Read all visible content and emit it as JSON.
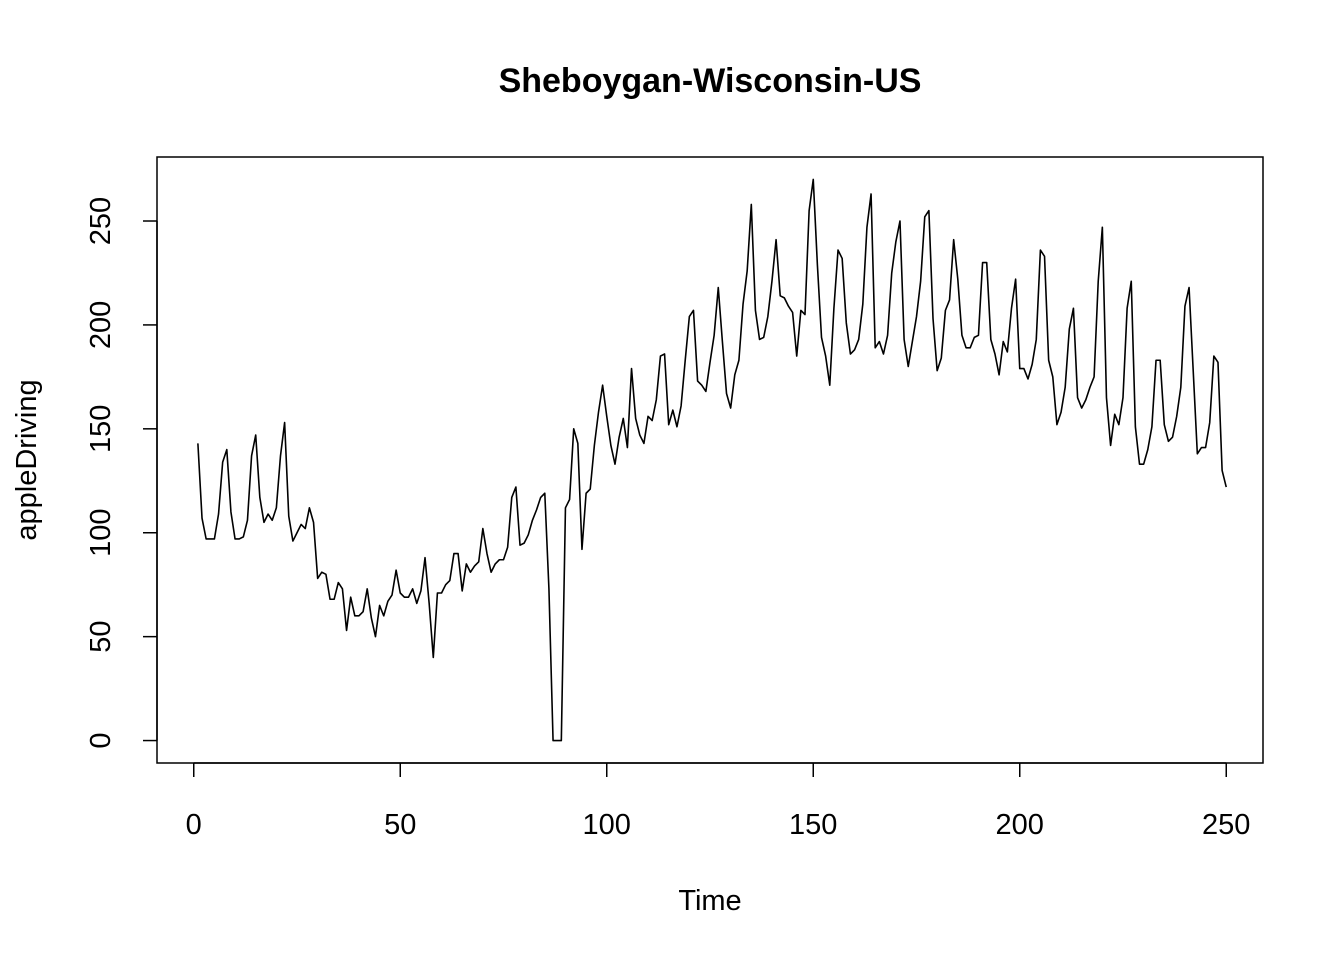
{
  "chart_data": {
    "type": "line",
    "title": "Sheboygan-Wisconsin-US",
    "xlabel": "Time",
    "ylabel": "appleDriving",
    "xlim": [
      -8.9,
      258.9
    ],
    "ylim": [
      -10.8,
      280.8
    ],
    "x_ticks": [
      0,
      50,
      100,
      150,
      200,
      250
    ],
    "y_ticks": [
      0,
      50,
      100,
      150,
      200,
      250
    ],
    "x_tick_labels": [
      "0",
      "50",
      "100",
      "150",
      "200",
      "250"
    ],
    "y_tick_labels": [
      "0",
      "50",
      "100",
      "150",
      "200",
      "250"
    ],
    "grid": false,
    "line_color": "#000000",
    "series": [
      {
        "x_start": 1,
        "values": [
          143,
          107,
          97,
          97,
          97,
          109,
          134,
          140,
          110,
          97,
          97,
          98,
          106,
          137,
          147,
          117,
          105,
          109,
          106,
          112,
          137,
          153,
          108,
          96,
          100,
          104,
          102,
          112,
          105,
          78,
          81,
          80,
          68,
          68,
          76,
          73,
          53,
          69,
          60,
          60,
          62,
          73,
          59,
          50,
          65,
          60,
          67,
          70,
          82,
          71,
          69,
          69,
          73,
          66,
          72,
          88,
          66,
          40,
          71,
          71,
          75,
          77,
          90,
          90,
          72,
          85,
          81,
          84,
          86,
          102,
          90,
          81,
          85,
          87,
          87,
          93,
          117,
          122,
          94,
          95,
          99,
          106,
          111,
          117,
          119,
          73,
          0,
          0,
          0,
          112,
          116,
          150,
          143,
          92,
          119,
          121,
          142,
          158,
          171,
          156,
          142,
          133,
          146,
          155,
          141,
          179,
          155,
          147,
          143,
          156,
          154,
          164,
          185,
          186,
          152,
          159,
          151,
          161,
          183,
          204,
          207,
          173,
          171,
          168,
          182,
          195,
          218,
          192,
          167,
          160,
          176,
          183,
          210,
          226,
          258,
          207,
          193,
          194,
          204,
          221,
          241,
          214,
          213,
          209,
          206,
          185,
          207,
          205,
          255,
          270,
          229,
          194,
          185,
          171,
          208,
          236,
          232,
          201,
          186,
          188,
          193,
          210,
          247,
          263,
          189,
          192,
          186,
          195,
          225,
          240,
          250,
          193,
          180,
          192,
          204,
          221,
          252,
          255,
          203,
          178,
          184,
          207,
          212,
          241,
          222,
          195,
          189,
          189,
          194,
          195,
          230,
          230,
          193,
          186,
          176,
          192,
          187,
          208,
          222,
          179,
          179,
          174,
          181,
          193,
          236,
          233,
          183,
          175,
          152,
          158,
          170,
          198,
          208,
          165,
          160,
          164,
          170,
          175,
          221,
          247,
          165,
          142,
          157,
          152,
          165,
          208,
          221,
          151,
          133,
          133,
          140,
          151,
          183,
          183,
          152,
          144,
          146,
          156,
          170,
          209,
          218,
          178,
          138,
          141,
          141,
          153,
          185,
          182,
          130,
          122
        ]
      }
    ]
  }
}
